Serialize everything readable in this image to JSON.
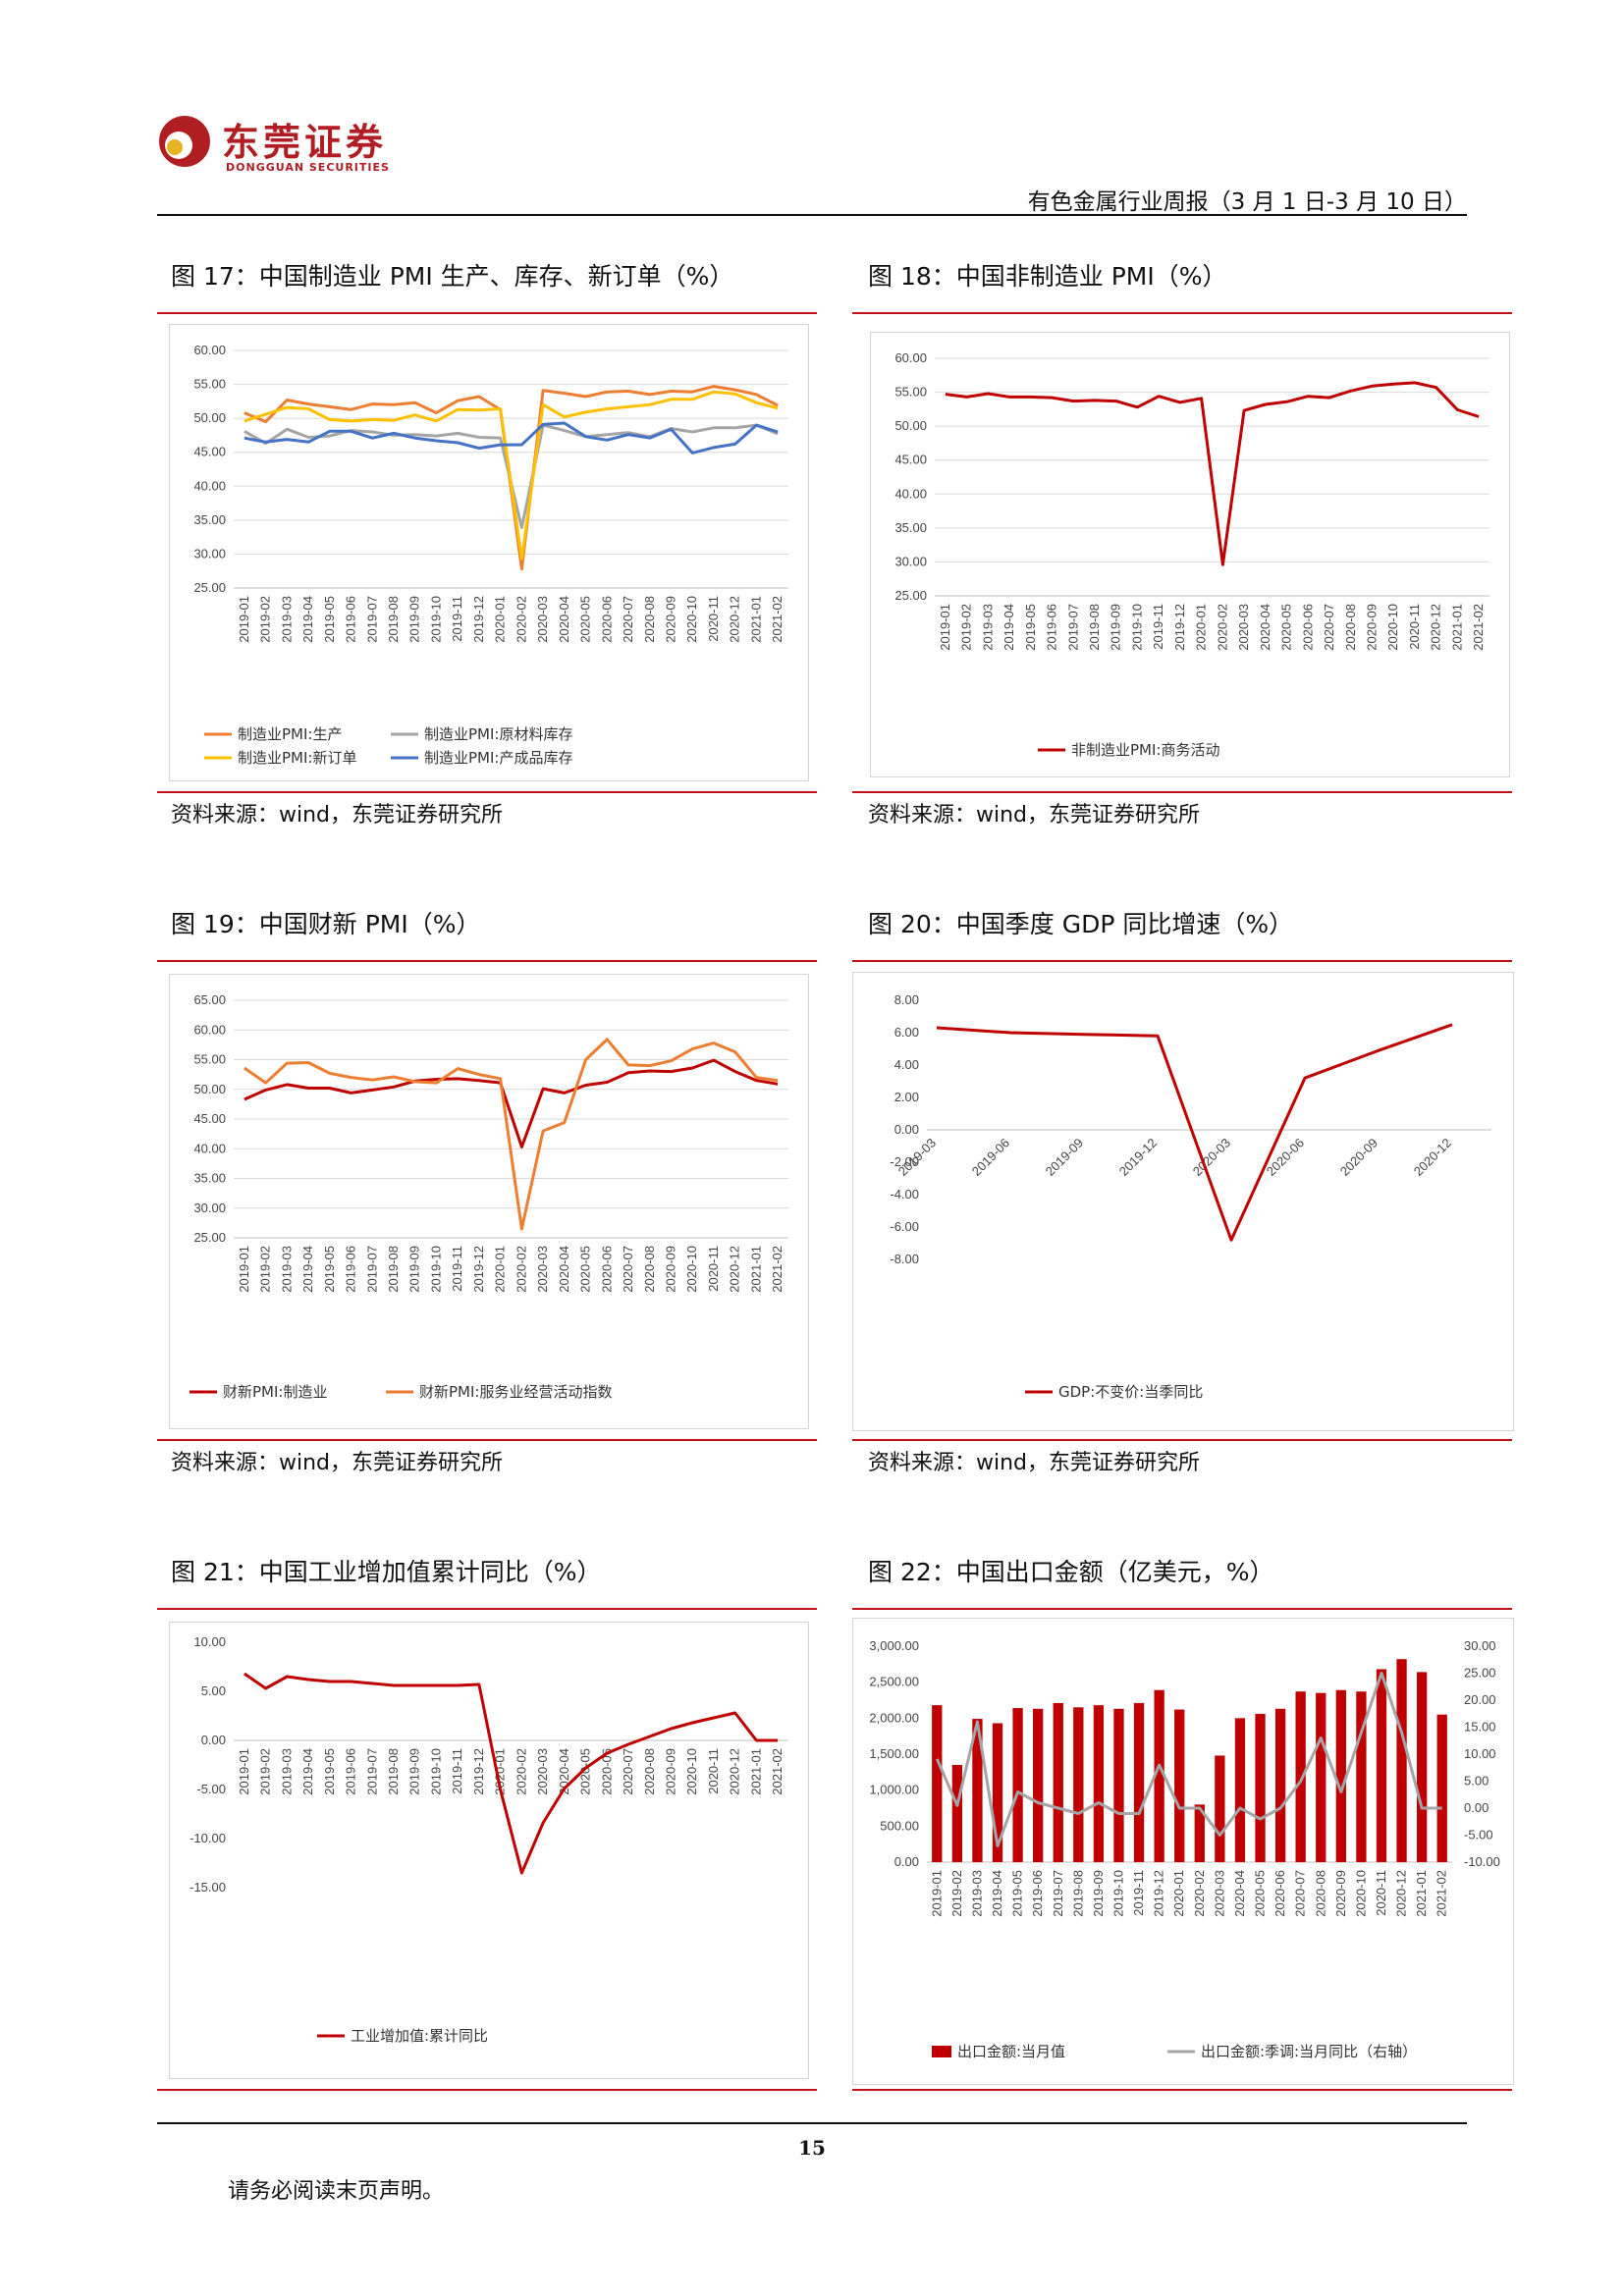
{
  "header": {
    "brand_cn": "东莞证券",
    "brand_en": "DONGGUAN SECURITIES",
    "report_title": "有色金属行业周报（3 月 1 日-3 月 10 日）"
  },
  "figures": [
    {
      "title": "图 17：中国制造业 PMI 生产、库存、新订单（%）",
      "source": "资料来源：wind，东莞证券研究所"
    },
    {
      "title": "图 18：中国非制造业 PMI（%）",
      "source": "资料来源：wind，东莞证券研究所"
    },
    {
      "title": "图 19：中国财新 PMI（%）",
      "source": "资料来源：wind，东莞证券研究所"
    },
    {
      "title": "图 20：中国季度 GDP 同比增速（%）",
      "source": "资料来源：wind，东莞证券研究所"
    },
    {
      "title": "图 21：中国工业增加值累计同比（%）",
      "source": "资料来源：wind，东莞证券研究所"
    },
    {
      "title": "图 22：中国出口金额（亿美元，%）",
      "source": "资料来源：wind，东莞证券研究所"
    }
  ],
  "footer": {
    "page_number": "15",
    "disclaimer": "请务必阅读末页声明。"
  },
  "chart_data": [
    {
      "type": "line",
      "categories": [
        "2019-01",
        "2019-02",
        "2019-03",
        "2019-04",
        "2019-05",
        "2019-06",
        "2019-07",
        "2019-08",
        "2019-09",
        "2019-10",
        "2019-11",
        "2019-12",
        "2020-01",
        "2020-02",
        "2020-03",
        "2020-04",
        "2020-05",
        "2020-06",
        "2020-07",
        "2020-08",
        "2020-09",
        "2020-10",
        "2020-11",
        "2020-12",
        "2021-01",
        "2021-02"
      ],
      "yticks": [
        "60.00",
        "55.00",
        "50.00",
        "45.00",
        "40.00",
        "35.00",
        "30.00",
        "25.00"
      ],
      "ylim": [
        25,
        60
      ],
      "legend_position": "bottom",
      "grid": true,
      "series": [
        {
          "name": "制造业PMI:生产",
          "color": "#ed7d31",
          "values": [
            50.8,
            49.5,
            52.7,
            52.1,
            51.7,
            51.3,
            52.1,
            52.0,
            52.3,
            50.8,
            52.6,
            53.2,
            51.3,
            27.8,
            54.1,
            53.7,
            53.2,
            53.9,
            54.0,
            53.5,
            54.0,
            53.9,
            54.7,
            54.2,
            53.5,
            51.9
          ]
        },
        {
          "name": "制造业PMI:原材料库存",
          "color": "#a5a5a5",
          "values": [
            48.1,
            46.3,
            48.4,
            47.2,
            47.4,
            48.2,
            48.0,
            47.5,
            47.6,
            47.4,
            47.8,
            47.2,
            47.1,
            33.9,
            49.0,
            48.2,
            47.3,
            47.6,
            47.9,
            47.3,
            48.5,
            48.0,
            48.6,
            48.6,
            49.0,
            47.7
          ]
        },
        {
          "name": "制造业PMI:新订单",
          "color": "#ffc000",
          "values": [
            49.6,
            50.6,
            51.6,
            51.4,
            49.8,
            49.6,
            49.8,
            49.7,
            50.5,
            49.6,
            51.3,
            51.2,
            51.4,
            29.3,
            52.0,
            50.2,
            50.9,
            51.4,
            51.7,
            52.0,
            52.8,
            52.8,
            53.9,
            53.6,
            52.3,
            51.5
          ]
        },
        {
          "name": "制造业PMI:产成品库存",
          "color": "#4472c4",
          "values": [
            47.1,
            46.5,
            46.9,
            46.5,
            48.1,
            48.1,
            47.1,
            47.8,
            47.1,
            46.7,
            46.4,
            45.6,
            46.1,
            46.1,
            49.1,
            49.3,
            47.3,
            46.8,
            47.6,
            47.1,
            48.4,
            44.9,
            45.7,
            46.2,
            49.0,
            48.0
          ]
        }
      ]
    },
    {
      "type": "line",
      "categories": [
        "2019-01",
        "2019-02",
        "2019-03",
        "2019-04",
        "2019-05",
        "2019-06",
        "2019-07",
        "2019-08",
        "2019-09",
        "2019-10",
        "2019-11",
        "2019-12",
        "2020-01",
        "2020-02",
        "2020-03",
        "2020-04",
        "2020-05",
        "2020-06",
        "2020-07",
        "2020-08",
        "2020-09",
        "2020-10",
        "2020-11",
        "2020-12",
        "2021-01",
        "2021-02"
      ],
      "yticks": [
        "60.00",
        "55.00",
        "50.00",
        "45.00",
        "40.00",
        "35.00",
        "30.00",
        "25.00"
      ],
      "ylim": [
        25,
        60
      ],
      "legend_position": "bottom",
      "grid": true,
      "series": [
        {
          "name": "非制造业PMI:商务活动",
          "color": "#c00000",
          "values": [
            54.7,
            54.3,
            54.8,
            54.3,
            54.3,
            54.2,
            53.7,
            53.8,
            53.7,
            52.8,
            54.4,
            53.5,
            54.1,
            29.6,
            52.3,
            53.2,
            53.6,
            54.4,
            54.2,
            55.2,
            55.9,
            56.2,
            56.4,
            55.7,
            52.4,
            51.4
          ]
        }
      ]
    },
    {
      "type": "line",
      "categories": [
        "2019-01",
        "2019-02",
        "2019-03",
        "2019-04",
        "2019-05",
        "2019-06",
        "2019-07",
        "2019-08",
        "2019-09",
        "2019-10",
        "2019-11",
        "2019-12",
        "2020-01",
        "2020-02",
        "2020-03",
        "2020-04",
        "2020-05",
        "2020-06",
        "2020-07",
        "2020-08",
        "2020-09",
        "2020-10",
        "2020-11",
        "2020-12",
        "2021-01",
        "2021-02"
      ],
      "yticks": [
        "65.00",
        "60.00",
        "55.00",
        "50.00",
        "45.00",
        "40.00",
        "35.00",
        "30.00",
        "25.00"
      ],
      "ylim": [
        25,
        65
      ],
      "legend_position": "bottom",
      "grid": true,
      "series": [
        {
          "name": "财新PMI:制造业",
          "color": "#c00000",
          "values": [
            48.3,
            49.9,
            50.8,
            50.2,
            50.2,
            49.4,
            49.9,
            50.4,
            51.4,
            51.7,
            51.8,
            51.5,
            51.1,
            40.3,
            50.1,
            49.4,
            50.7,
            51.2,
            52.8,
            53.1,
            53.0,
            53.6,
            54.9,
            53.0,
            51.5,
            50.9
          ]
        },
        {
          "name": "财新PMI:服务业经营活动指数",
          "color": "#ed7d31",
          "values": [
            53.6,
            51.1,
            54.4,
            54.5,
            52.7,
            52.0,
            51.6,
            52.1,
            51.3,
            51.1,
            53.5,
            52.5,
            51.8,
            26.5,
            43.0,
            44.4,
            55.0,
            58.4,
            54.1,
            54.0,
            54.8,
            56.8,
            57.8,
            56.3,
            52.0,
            51.5
          ]
        }
      ]
    },
    {
      "type": "line",
      "categories": [
        "2019-03",
        "2019-06",
        "2019-09",
        "2019-12",
        "2020-03",
        "2020-06",
        "2020-09",
        "2020-12"
      ],
      "yticks": [
        "8.00",
        "6.00",
        "4.00",
        "2.00",
        "0.00",
        "-2.00",
        "-4.00",
        "-6.00",
        "-8.00"
      ],
      "ylim": [
        -8,
        8
      ],
      "legend_position": "bottom",
      "grid": false,
      "series": [
        {
          "name": "GDP:不变价:当季同比",
          "color": "#c00000",
          "values": [
            6.3,
            6.0,
            5.9,
            5.8,
            -6.8,
            3.2,
            4.9,
            6.5
          ]
        }
      ]
    },
    {
      "type": "line",
      "categories": [
        "2019-01",
        "2019-02",
        "2019-03",
        "2019-04",
        "2019-05",
        "2019-06",
        "2019-07",
        "2019-08",
        "2019-09",
        "2019-10",
        "2019-11",
        "2019-12",
        "2020-01",
        "2020-02",
        "2020-03",
        "2020-04",
        "2020-05",
        "2020-06",
        "2020-07",
        "2020-08",
        "2020-09",
        "2020-10",
        "2020-11",
        "2020-12",
        "2021-01",
        "2021-02"
      ],
      "yticks": [
        "10.00",
        "5.00",
        "0.00",
        "-5.00",
        "-10.00",
        "-15.00"
      ],
      "ylim": [
        -15,
        10
      ],
      "legend_position": "bottom",
      "grid": false,
      "series": [
        {
          "name": "工业增加值:累计同比",
          "color": "#c00000",
          "values": [
            6.8,
            5.3,
            6.5,
            6.2,
            6.0,
            6.0,
            5.8,
            5.6,
            5.6,
            5.6,
            5.6,
            5.7,
            -5.0,
            -13.5,
            -8.4,
            -4.9,
            -2.8,
            -1.3,
            -0.4,
            0.4,
            1.2,
            1.8,
            2.3,
            2.8,
            0,
            0
          ]
        }
      ]
    },
    {
      "type": "bar",
      "categories": [
        "2019-01",
        "2019-02",
        "2019-03",
        "2019-04",
        "2019-05",
        "2019-06",
        "2019-07",
        "2019-08",
        "2019-09",
        "2019-10",
        "2019-11",
        "2019-12",
        "2020-01",
        "2020-02",
        "2020-03",
        "2020-04",
        "2020-05",
        "2020-06",
        "2020-07",
        "2020-08",
        "2020-09",
        "2020-10",
        "2020-11",
        "2020-12",
        "2021-01",
        "2021-02"
      ],
      "yticks": [
        "3,000.00",
        "2,500.00",
        "2,000.00",
        "1,500.00",
        "1,000.00",
        "500.00",
        "0.00"
      ],
      "ylim": [
        0,
        3000
      ],
      "y2ticks": [
        "30.00",
        "25.00",
        "20.00",
        "15.00",
        "10.00",
        "5.00",
        "0.00",
        "-5.00",
        "-10.00"
      ],
      "y2lim": [
        -10,
        30
      ],
      "legend_position": "bottom",
      "grid": false,
      "series": [
        {
          "name": "出口金额:当月值",
          "color": "#c00000",
          "axis": "left",
          "values": [
            2180,
            1350,
            1990,
            1930,
            2140,
            2130,
            2210,
            2150,
            2180,
            2130,
            2210,
            2390,
            2120,
            800,
            1480,
            2000,
            2060,
            2130,
            2370,
            2350,
            2390,
            2370,
            2680,
            2820,
            2640,
            2050
          ]
        },
        {
          "name": "出口金额:季调:当月同比（右轴）",
          "color": "#a5a5a5",
          "axis": "right",
          "values": [
            9.1,
            0.5,
            16,
            -7,
            3,
            1,
            0,
            -1,
            1,
            -1,
            -1,
            8,
            0,
            0,
            -5,
            0,
            -2,
            0,
            5,
            13,
            3,
            14,
            25,
            14,
            0,
            0
          ]
        }
      ]
    }
  ]
}
